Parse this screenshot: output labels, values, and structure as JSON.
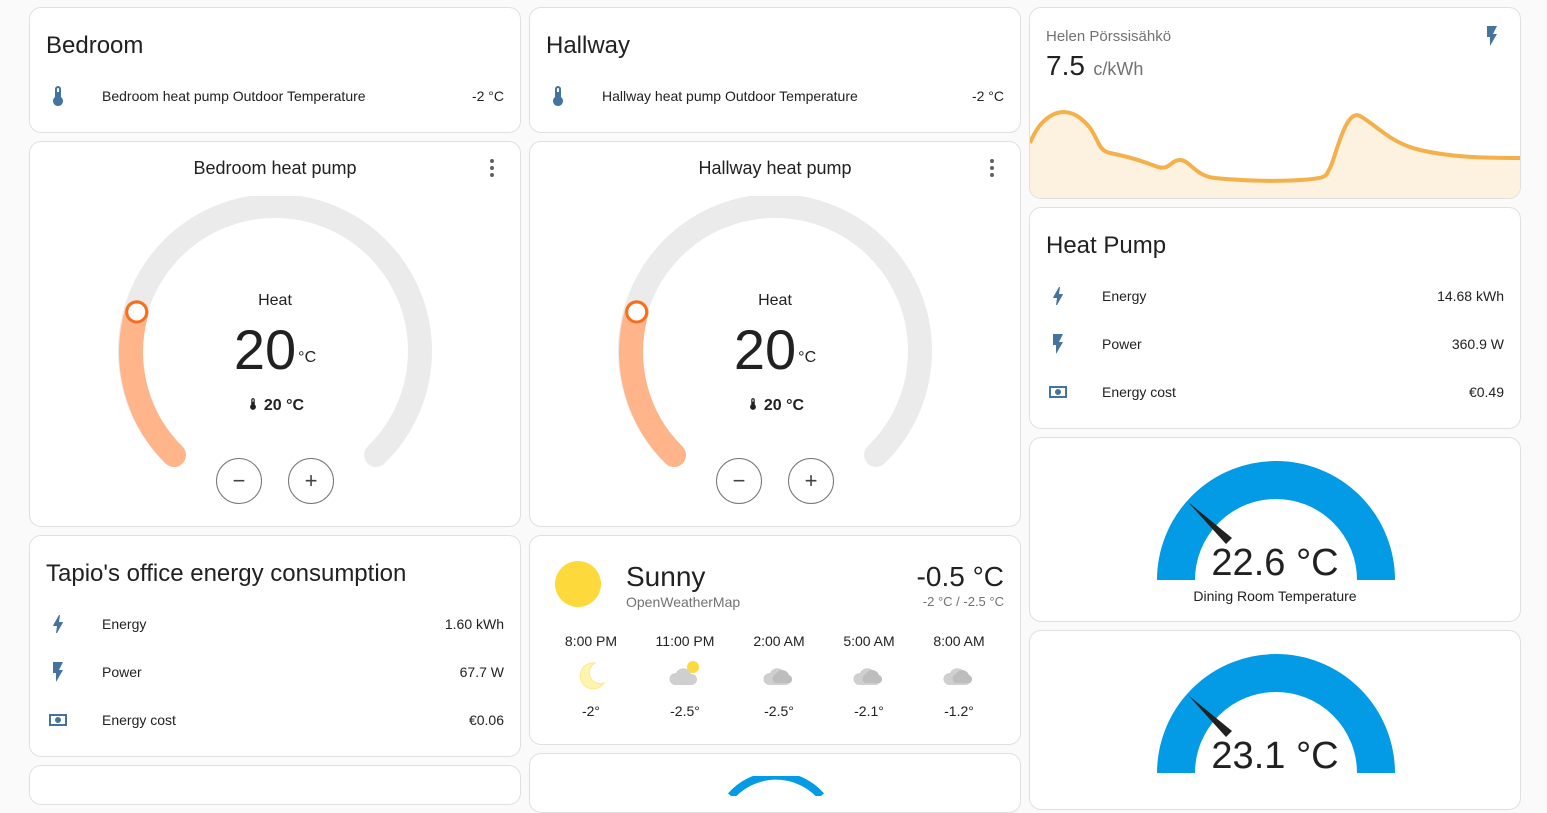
{
  "bedroom_card": {
    "title": "Bedroom",
    "row": {
      "label": "Bedroom heat pump Outdoor Temperature",
      "value": "-2 °C",
      "icon": "thermometer-icon"
    }
  },
  "hallway_card": {
    "title": "Hallway",
    "row": {
      "label": "Hallway heat pump Outdoor Temperature",
      "value": "-2 °C",
      "icon": "thermometer-icon"
    }
  },
  "bedroom_thermostat": {
    "name": "Bedroom heat pump",
    "mode": "Heat",
    "target": "20",
    "unit": "°C",
    "current": "20 °C",
    "minus": "−",
    "plus": "+"
  },
  "hallway_thermostat": {
    "name": "Hallway heat pump",
    "mode": "Heat",
    "target": "20",
    "unit": "°C",
    "current": "20 °C",
    "minus": "−",
    "plus": "+"
  },
  "price_card": {
    "name": "Helen Pörssisähkö",
    "value": "7.5",
    "unit": "c/kWh",
    "icon": "flash-icon",
    "accent": "#f4b04a",
    "fill": "#fdf1e0"
  },
  "heat_pump_card": {
    "title": "Heat Pump",
    "rows": [
      {
        "label": "Energy",
        "value": "14.68 kWh",
        "icon": "lightning-icon"
      },
      {
        "label": "Power",
        "value": "360.9 W",
        "icon": "flash-icon"
      },
      {
        "label": "Energy cost",
        "value": "€0.49",
        "icon": "cash-icon"
      }
    ]
  },
  "dining_gauge": {
    "value": "22.6 °C",
    "name": "Dining Room Temperature",
    "color": "#039be5"
  },
  "second_gauge": {
    "value": "23.1 °C",
    "color": "#039be5"
  },
  "office_card": {
    "title": "Tapio's office energy consumption",
    "rows": [
      {
        "label": "Energy",
        "value": "1.60 kWh",
        "icon": "lightning-icon"
      },
      {
        "label": "Power",
        "value": "67.7 W",
        "icon": "flash-icon"
      },
      {
        "label": "Energy cost",
        "value": "€0.06",
        "icon": "cash-icon"
      }
    ]
  },
  "weather_card": {
    "condition": "Sunny",
    "provider": "OpenWeatherMap",
    "temperature": "-0.5 °C",
    "range": "-2 °C / -2.5 °C",
    "icon": "sun-icon",
    "forecast": [
      {
        "time": "8:00 PM",
        "temp": "-2°",
        "icon": "moon-icon"
      },
      {
        "time": "11:00 PM",
        "temp": "-2.5°",
        "icon": "partly-cloudy-icon"
      },
      {
        "time": "2:00 AM",
        "temp": "-2.5°",
        "icon": "cloud-icon"
      },
      {
        "time": "5:00 AM",
        "temp": "-2.1°",
        "icon": "cloud-icon"
      },
      {
        "time": "8:00 AM",
        "temp": "-1.2°",
        "icon": "cloud-icon"
      }
    ]
  }
}
